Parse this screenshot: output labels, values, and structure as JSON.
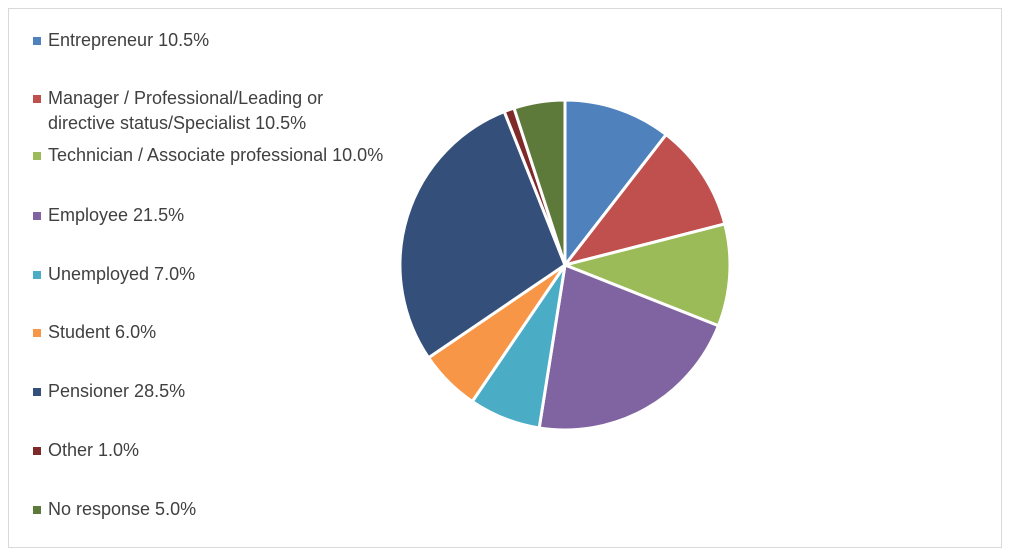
{
  "chart_data": {
    "type": "pie",
    "title": "",
    "legend_position": "left",
    "categories": [
      "Entrepreneur",
      "Manager / Professional/Leading or directive status/Specialist",
      "Technician / Associate professional",
      "Employee",
      "Unemployed",
      "Student",
      "Pensioner",
      "Other",
      "No response"
    ],
    "values": [
      10.5,
      10.5,
      10.0,
      21.5,
      7.0,
      6.0,
      28.5,
      1.0,
      5.0
    ],
    "legend_labels": [
      "Entrepreneur 10.5%",
      "Manager / Professional/Leading or directive status/Specialist 10.5%",
      "Technician / Associate professional 10.0%",
      "Employee 21.5%",
      "Unemployed 7.0%",
      "Student 6.0%",
      "Pensioner 28.5%",
      "Other 1.0%",
      "No response 5.0%"
    ],
    "colors": [
      "#4f81bd",
      "#c0504d",
      "#9bbb59",
      "#8064a2",
      "#4bacc6",
      "#f79646",
      "#34507a",
      "#7f2a2a",
      "#5e7a3a"
    ]
  }
}
